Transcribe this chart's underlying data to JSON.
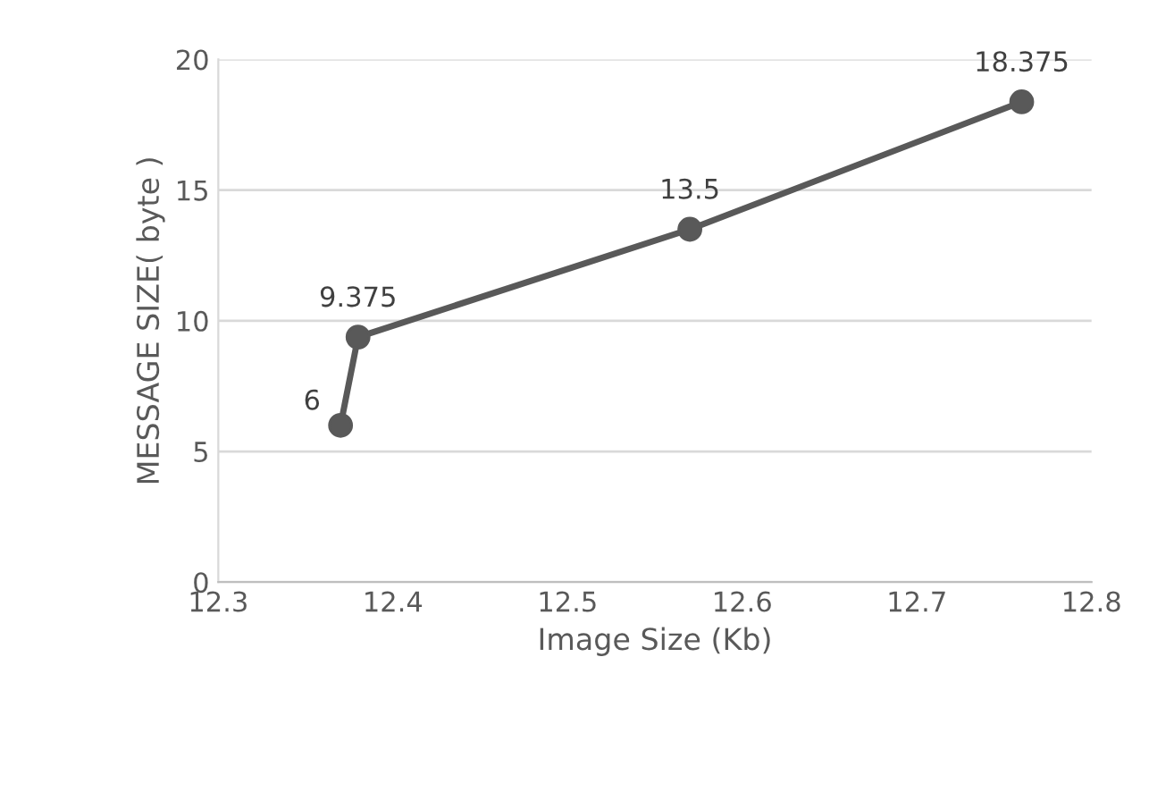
{
  "chart_data": {
    "type": "line",
    "xlabel": "Image Size (Kb)",
    "ylabel": "MESSAGE SIZE( byte )",
    "x": [
      12.37,
      12.38,
      12.57,
      12.76
    ],
    "series": [
      {
        "color": "#595959",
        "values": [
          6,
          9.375,
          13.5,
          18.375
        ]
      }
    ],
    "xlim": [
      12.3,
      12.8
    ],
    "xticks": [
      12.3,
      12.4,
      12.5,
      12.6,
      12.7,
      12.8
    ],
    "ylim": [
      0,
      20
    ],
    "yticks": [
      0,
      5,
      10,
      15,
      20
    ],
    "grid": "y",
    "marker": "circle",
    "line_style": "solid",
    "data_labels": true
  }
}
